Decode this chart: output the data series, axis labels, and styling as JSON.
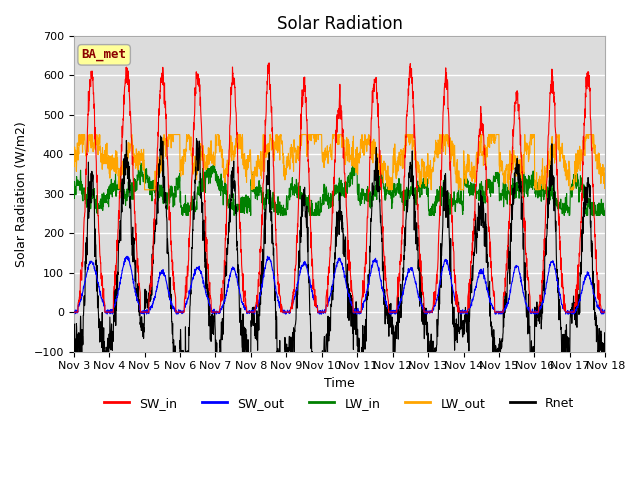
{
  "title": "Solar Radiation",
  "ylabel": "Solar Radiation (W/m2)",
  "xlabel": "Time",
  "ylim": [
    -100,
    700
  ],
  "yticks": [
    -100,
    0,
    100,
    200,
    300,
    400,
    500,
    600,
    700
  ],
  "xtick_labels": [
    "Nov 3",
    "Nov 4",
    "Nov 5",
    "Nov 6",
    "Nov 7",
    "Nov 8",
    "Nov 9",
    "Nov 10",
    "Nov 11",
    "Nov 12",
    "Nov 13",
    "Nov 14",
    "Nov 15",
    "Nov 16",
    "Nov 17",
    "Nov 18"
  ],
  "legend_labels": [
    "SW_in",
    "SW_out",
    "LW_in",
    "LW_out",
    "Rnet"
  ],
  "legend_colors": [
    "red",
    "blue",
    "green",
    "orange",
    "black"
  ],
  "annotation_text": "BA_met",
  "annotation_color": "darkred",
  "annotation_bg": "#ffff99",
  "plot_bg": "#dcdcdc",
  "grid_color": "white",
  "title_fontsize": 12,
  "label_fontsize": 9,
  "tick_fontsize": 8
}
